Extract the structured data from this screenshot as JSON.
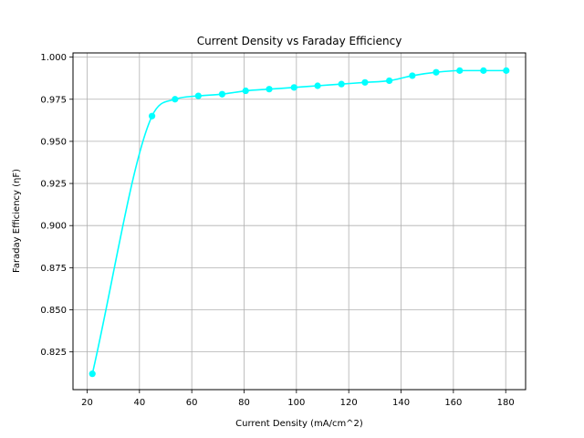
{
  "chart_data": {
    "type": "line",
    "title": "Current Density vs Faraday Efficiency",
    "xlabel": "Current Density (mA/cm^2)",
    "ylabel": "Faraday Efficiency (ηF)",
    "xlim": [
      14.6,
      187.6
    ],
    "ylim": [
      0.8026,
      1.0025
    ],
    "x_ticks": [
      20,
      40,
      60,
      80,
      100,
      120,
      140,
      160,
      180
    ],
    "y_ticks": [
      0.825,
      0.85,
      0.875,
      0.9,
      0.925,
      0.95,
      0.975,
      1.0
    ],
    "x_tick_labels": [
      "20",
      "40",
      "60",
      "80",
      "100",
      "120",
      "140",
      "160",
      "180"
    ],
    "y_tick_labels": [
      "0.825",
      "0.850",
      "0.875",
      "0.900",
      "0.925",
      "0.950",
      "0.975",
      "1.000"
    ],
    "grid": true,
    "color": "#00ffff",
    "series": [
      {
        "x": [
          22.0,
          44.8,
          53.6,
          62.5,
          71.6,
          80.6,
          89.6,
          99.1,
          108.1,
          117.2,
          126.2,
          135.5,
          144.3,
          153.4,
          162.4,
          171.5,
          180.2
        ],
        "y": [
          0.812,
          0.965,
          0.975,
          0.977,
          0.978,
          0.98,
          0.981,
          0.982,
          0.983,
          0.984,
          0.985,
          0.986,
          0.989,
          0.991,
          0.992,
          0.992,
          0.992
        ]
      }
    ]
  }
}
